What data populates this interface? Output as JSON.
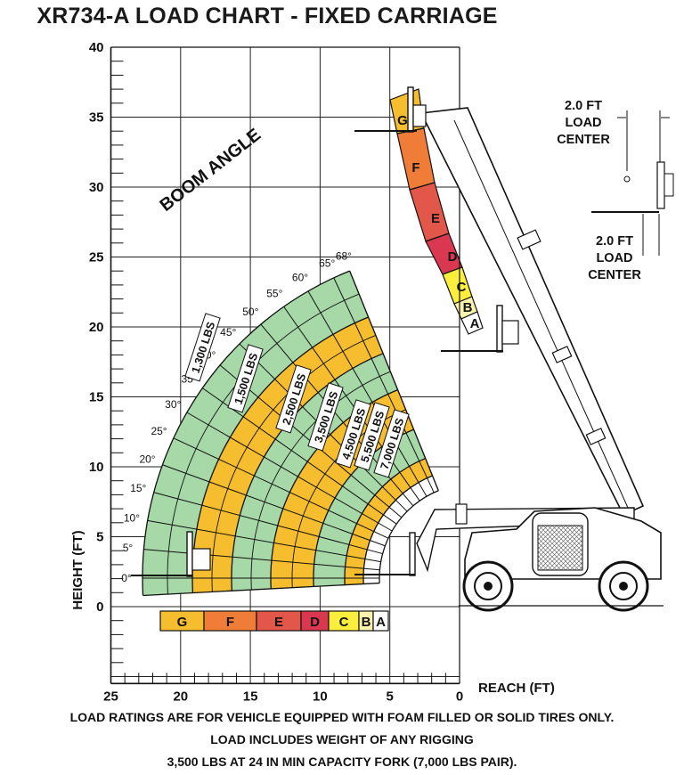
{
  "title": "XR734-A LOAD CHART - FIXED CARRIAGE",
  "boom_angle_label": "BOOM ANGLE",
  "axes": {
    "x_label": "REACH (FT)",
    "y_label": "HEIGHT (FT)",
    "x_ticks": [
      "25",
      "20",
      "15",
      "10",
      "5",
      "0"
    ],
    "y_ticks": [
      "40",
      "35",
      "30",
      "25",
      "20",
      "15",
      "10",
      "5",
      "0"
    ]
  },
  "boom_angles": [
    "0°",
    "5°",
    "10°",
    "15°",
    "20°",
    "25°",
    "30°",
    "35°",
    "40°",
    "45°",
    "50°",
    "55°",
    "60°",
    "65°",
    "68°"
  ],
  "capacities": [
    "1,300 LBS",
    "1,500 LBS",
    "2,500 LBS",
    "3,500 LBS",
    "4,500 LBS",
    "5,500 LBS",
    "7,000 LBS"
  ],
  "zones": [
    "G",
    "F",
    "E",
    "D",
    "C",
    "B",
    "A"
  ],
  "zone_colors": {
    "G": "#f6bd2e",
    "F": "#ef7d38",
    "E": "#e2574a",
    "D": "#d93850",
    "C": "#fbee3c",
    "B": "#fbf3ad",
    "A": "#ffffff"
  },
  "band_colors": [
    "#a6d8a8",
    "#f6bd2e",
    "#a6d8a8",
    "#f6bd2e",
    "#a6d8a8",
    "#f6bd2e",
    "#ffffff"
  ],
  "load_center_labels": [
    {
      "line1": "2.0 FT",
      "line2": "LOAD",
      "line3": "CENTER"
    },
    {
      "line1": "2.0 FT",
      "line2": "LOAD",
      "line3": "CENTER"
    }
  ],
  "notes": [
    "LOAD RATINGS ARE FOR VEHICLE EQUIPPED WITH FOAM FILLED OR SOLID TIRES ONLY.",
    "LOAD INCLUDES WEIGHT OF ANY RIGGING",
    "3,500 LBS AT 24 IN MIN CAPACITY FORK (7,000 LBS PAIR)."
  ]
}
